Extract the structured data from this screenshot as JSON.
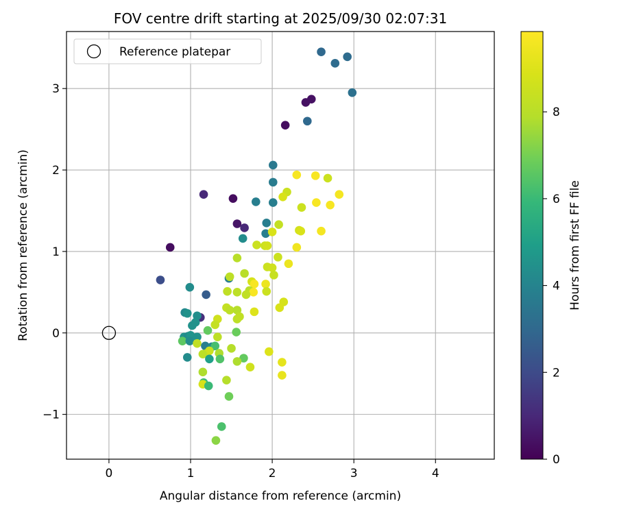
{
  "chart_data": {
    "type": "scatter",
    "title": "FOV centre drift starting at 2025/09/30 02:07:31",
    "xlabel": "Angular distance from reference (arcmin)",
    "ylabel": "Rotation from reference (arcmin)",
    "xlim": [
      -0.52,
      4.72
    ],
    "ylim": [
      -1.55,
      3.7
    ],
    "xticks": [
      0,
      1,
      2,
      3,
      4
    ],
    "xtick_labels": [
      "0",
      "1",
      "2",
      "3",
      "4"
    ],
    "yticks": [
      -1,
      0,
      1,
      2,
      3
    ],
    "ytick_labels": [
      "−1",
      "0",
      "1",
      "2",
      "3"
    ],
    "grid": true,
    "legend": {
      "position": "top-left",
      "label": "Reference platepar"
    },
    "reference_point": {
      "x": 0,
      "y": 0
    },
    "colorbar": {
      "label": "Hours from first FF file",
      "range": [
        0,
        9.85
      ],
      "ticks": [
        0,
        2,
        4,
        6,
        8
      ],
      "tick_labels": [
        "0",
        "2",
        "4",
        "6",
        "8"
      ],
      "colormap": "viridis"
    },
    "series": [
      {
        "name": "FOV centre",
        "points": [
          {
            "x": 2.6,
            "y": 3.45,
            "c": 3.0
          },
          {
            "x": 2.77,
            "y": 3.31,
            "c": 3.1
          },
          {
            "x": 2.92,
            "y": 3.39,
            "c": 3.1
          },
          {
            "x": 2.98,
            "y": 2.95,
            "c": 3.3
          },
          {
            "x": 2.48,
            "y": 2.87,
            "c": 0.4
          },
          {
            "x": 2.41,
            "y": 2.83,
            "c": 0.4
          },
          {
            "x": 2.43,
            "y": 2.6,
            "c": 3.0
          },
          {
            "x": 2.16,
            "y": 2.55,
            "c": 0.3
          },
          {
            "x": 2.01,
            "y": 2.06,
            "c": 3.6
          },
          {
            "x": 2.3,
            "y": 1.94,
            "c": 9.7
          },
          {
            "x": 2.53,
            "y": 1.93,
            "c": 9.7
          },
          {
            "x": 2.68,
            "y": 1.9,
            "c": 8.5
          },
          {
            "x": 2.01,
            "y": 1.85,
            "c": 3.7
          },
          {
            "x": 2.18,
            "y": 1.73,
            "c": 8.5
          },
          {
            "x": 2.13,
            "y": 1.67,
            "c": 8.9
          },
          {
            "x": 2.82,
            "y": 1.7,
            "c": 9.6
          },
          {
            "x": 1.16,
            "y": 1.7,
            "c": 1.0
          },
          {
            "x": 1.52,
            "y": 1.65,
            "c": 0.3
          },
          {
            "x": 1.8,
            "y": 1.61,
            "c": 3.8
          },
          {
            "x": 2.01,
            "y": 1.6,
            "c": 3.8
          },
          {
            "x": 2.54,
            "y": 1.6,
            "c": 9.7
          },
          {
            "x": 2.71,
            "y": 1.57,
            "c": 9.7
          },
          {
            "x": 2.36,
            "y": 1.54,
            "c": 8.5
          },
          {
            "x": 1.57,
            "y": 1.34,
            "c": 0.5
          },
          {
            "x": 1.66,
            "y": 1.29,
            "c": 1.0
          },
          {
            "x": 1.93,
            "y": 1.35,
            "c": 3.8
          },
          {
            "x": 2.08,
            "y": 1.33,
            "c": 8.3
          },
          {
            "x": 2.33,
            "y": 1.26,
            "c": 8.7
          },
          {
            "x": 2.35,
            "y": 1.25,
            "c": 8.9
          },
          {
            "x": 2.6,
            "y": 1.25,
            "c": 9.6
          },
          {
            "x": 1.92,
            "y": 1.22,
            "c": 3.8
          },
          {
            "x": 2.0,
            "y": 1.24,
            "c": 8.9
          },
          {
            "x": 1.64,
            "y": 1.16,
            "c": 4.3
          },
          {
            "x": 1.81,
            "y": 1.08,
            "c": 8.5
          },
          {
            "x": 1.91,
            "y": 1.07,
            "c": 8.5
          },
          {
            "x": 1.94,
            "y": 1.07,
            "c": 8.7
          },
          {
            "x": 2.3,
            "y": 1.05,
            "c": 9.5
          },
          {
            "x": 0.75,
            "y": 1.05,
            "c": 0.3
          },
          {
            "x": 2.07,
            "y": 0.93,
            "c": 8.5
          },
          {
            "x": 1.57,
            "y": 0.92,
            "c": 8.0
          },
          {
            "x": 2.2,
            "y": 0.85,
            "c": 9.4
          },
          {
            "x": 1.94,
            "y": 0.81,
            "c": 8.5
          },
          {
            "x": 2.0,
            "y": 0.8,
            "c": 8.6
          },
          {
            "x": 1.66,
            "y": 0.73,
            "c": 8.0
          },
          {
            "x": 2.02,
            "y": 0.71,
            "c": 8.4
          },
          {
            "x": 1.47,
            "y": 0.67,
            "c": 3.8
          },
          {
            "x": 1.48,
            "y": 0.69,
            "c": 8.1
          },
          {
            "x": 0.63,
            "y": 0.65,
            "c": 2.1
          },
          {
            "x": 1.75,
            "y": 0.63,
            "c": 8.8
          },
          {
            "x": 1.78,
            "y": 0.6,
            "c": 9.7
          },
          {
            "x": 1.92,
            "y": 0.6,
            "c": 9.4
          },
          {
            "x": 0.99,
            "y": 0.56,
            "c": 4.3
          },
          {
            "x": 1.45,
            "y": 0.51,
            "c": 8.2
          },
          {
            "x": 1.57,
            "y": 0.5,
            "c": 8.1
          },
          {
            "x": 1.72,
            "y": 0.52,
            "c": 8.0
          },
          {
            "x": 1.77,
            "y": 0.5,
            "c": 9.7
          },
          {
            "x": 1.93,
            "y": 0.51,
            "c": 8.5
          },
          {
            "x": 1.68,
            "y": 0.47,
            "c": 8.2
          },
          {
            "x": 1.19,
            "y": 0.47,
            "c": 2.6
          },
          {
            "x": 2.14,
            "y": 0.38,
            "c": 8.8
          },
          {
            "x": 2.09,
            "y": 0.31,
            "c": 8.9
          },
          {
            "x": 1.44,
            "y": 0.31,
            "c": 8.3
          },
          {
            "x": 1.48,
            "y": 0.28,
            "c": 8.1
          },
          {
            "x": 1.57,
            "y": 0.28,
            "c": 7.9
          },
          {
            "x": 1.78,
            "y": 0.26,
            "c": 9.0
          },
          {
            "x": 0.93,
            "y": 0.25,
            "c": 4.2
          },
          {
            "x": 0.96,
            "y": 0.24,
            "c": 4.5
          },
          {
            "x": 1.12,
            "y": 0.19,
            "c": 1.2
          },
          {
            "x": 1.08,
            "y": 0.21,
            "c": 4.4
          },
          {
            "x": 1.57,
            "y": 0.17,
            "c": 8.1
          },
          {
            "x": 1.6,
            "y": 0.2,
            "c": 8.2
          },
          {
            "x": 1.33,
            "y": 0.17,
            "c": 8.6
          },
          {
            "x": 1.06,
            "y": 0.13,
            "c": 4.5
          },
          {
            "x": 1.02,
            "y": 0.09,
            "c": 4.5
          },
          {
            "x": 1.3,
            "y": 0.1,
            "c": 8.3
          },
          {
            "x": 1.56,
            "y": 0.01,
            "c": 6.8
          },
          {
            "x": 1.21,
            "y": 0.03,
            "c": 6.7
          },
          {
            "x": 0.92,
            "y": -0.05,
            "c": 4.5
          },
          {
            "x": 0.97,
            "y": -0.04,
            "c": 4.2
          },
          {
            "x": 1.0,
            "y": -0.03,
            "c": 4.6
          },
          {
            "x": 1.08,
            "y": -0.05,
            "c": 4.5
          },
          {
            "x": 1.33,
            "y": -0.05,
            "c": 8.1
          },
          {
            "x": 0.9,
            "y": -0.1,
            "c": 6.6
          },
          {
            "x": 0.99,
            "y": -0.1,
            "c": 4.3
          },
          {
            "x": 1.08,
            "y": -0.13,
            "c": 8.2
          },
          {
            "x": 1.18,
            "y": -0.16,
            "c": 3.8
          },
          {
            "x": 1.26,
            "y": -0.17,
            "c": 4.2
          },
          {
            "x": 1.3,
            "y": -0.16,
            "c": 6.2
          },
          {
            "x": 1.23,
            "y": -0.22,
            "c": 8.5
          },
          {
            "x": 1.2,
            "y": -0.25,
            "c": 8.6
          },
          {
            "x": 1.15,
            "y": -0.26,
            "c": 8.1
          },
          {
            "x": 1.35,
            "y": -0.25,
            "c": 7.8
          },
          {
            "x": 1.5,
            "y": -0.19,
            "c": 7.9
          },
          {
            "x": 1.96,
            "y": -0.23,
            "c": 9.0
          },
          {
            "x": 0.96,
            "y": -0.3,
            "c": 4.3
          },
          {
            "x": 1.23,
            "y": -0.32,
            "c": 5.0
          },
          {
            "x": 1.36,
            "y": -0.32,
            "c": 6.4
          },
          {
            "x": 1.65,
            "y": -0.31,
            "c": 6.7
          },
          {
            "x": 1.57,
            "y": -0.35,
            "c": 7.8
          },
          {
            "x": 2.12,
            "y": -0.36,
            "c": 9.2
          },
          {
            "x": 1.73,
            "y": -0.42,
            "c": 8.6
          },
          {
            "x": 1.15,
            "y": -0.48,
            "c": 7.8
          },
          {
            "x": 2.12,
            "y": -0.52,
            "c": 9.3
          },
          {
            "x": 1.44,
            "y": -0.58,
            "c": 7.9
          },
          {
            "x": 1.16,
            "y": -0.61,
            "c": 6.0
          },
          {
            "x": 1.15,
            "y": -0.63,
            "c": 8.8
          },
          {
            "x": 1.22,
            "y": -0.65,
            "c": 6.0
          },
          {
            "x": 1.47,
            "y": -0.78,
            "c": 6.9
          },
          {
            "x": 1.38,
            "y": -1.15,
            "c": 6.3
          },
          {
            "x": 1.31,
            "y": -1.32,
            "c": 7.3
          }
        ]
      }
    ]
  }
}
